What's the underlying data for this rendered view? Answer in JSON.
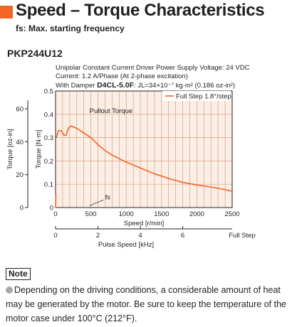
{
  "title": "Speed – Torque Characteristics",
  "subtitle": "fs: Max. starting frequency",
  "model": "PKP244U12",
  "conditions": {
    "line1": "Unipolar Constant Current Driver  Power Supply Voltage: 24 VDC",
    "line2": "Current: 1.2 A/Phase (At 2-phase excitation)",
    "line3_prefix": "With Damper ",
    "damper_model": "D4CL-5.0F",
    "line3_suffix": ": JL=34×10⁻⁷ kg·m² (0.186 oz-in²)"
  },
  "note": {
    "label": "Note",
    "text": "Depending on the driving conditions, a considerable amount of heat may be generated by the motor. Be sure to keep the temperature of the motor case under 100°C (212°F)."
  },
  "colors": {
    "accent": "#f26522",
    "grid": "#d8a184",
    "plot_bg": "#fbeee5",
    "text": "#231f20",
    "note_bullet": "#a7a9ac"
  },
  "chart_data": {
    "type": "line",
    "xlabel": "Speed [r/min]",
    "ylabel": "Torque [N·m]",
    "ylabel_secondary": "Torque [oz-in]",
    "xlabel_secondary": "Pulse Speed [kHz]",
    "xlabel_secondary_note": "Full Step",
    "xlim": [
      0,
      2500
    ],
    "ylim": [
      0,
      0.5
    ],
    "xticks": [
      "0",
      "500",
      "1000",
      "1500",
      "2000",
      "2500"
    ],
    "yticks": [
      "0",
      "0.1",
      "0.2",
      "0.3",
      "0.4",
      "0.5"
    ],
    "yticks_secondary": [
      "0",
      "20",
      "40",
      "60"
    ],
    "xticks_secondary": [
      "0",
      "2",
      "4",
      "6"
    ],
    "grid": true,
    "legend_position": "top-right",
    "series": [
      {
        "name": "Full Step 1.8°/step",
        "x": [
          10,
          40,
          80,
          120,
          150,
          180,
          220,
          300,
          400,
          500,
          600,
          700,
          800,
          900,
          1000,
          1200,
          1400,
          1600,
          1800,
          2000,
          2200,
          2400,
          2500
        ],
        "y": [
          0.3,
          0.33,
          0.33,
          0.31,
          0.31,
          0.34,
          0.35,
          0.34,
          0.32,
          0.3,
          0.27,
          0.245,
          0.225,
          0.21,
          0.195,
          0.17,
          0.145,
          0.125,
          0.108,
          0.097,
          0.088,
          0.077,
          0.07
        ]
      }
    ],
    "annotations": [
      {
        "text": "Pullout Torque",
        "x": 480,
        "y": 0.405
      },
      {
        "text": "fs",
        "x": 700,
        "y": 0.035
      }
    ],
    "fs_line": {
      "x": [
        0,
        5
      ],
      "y": [
        0,
        0.06
      ]
    }
  }
}
